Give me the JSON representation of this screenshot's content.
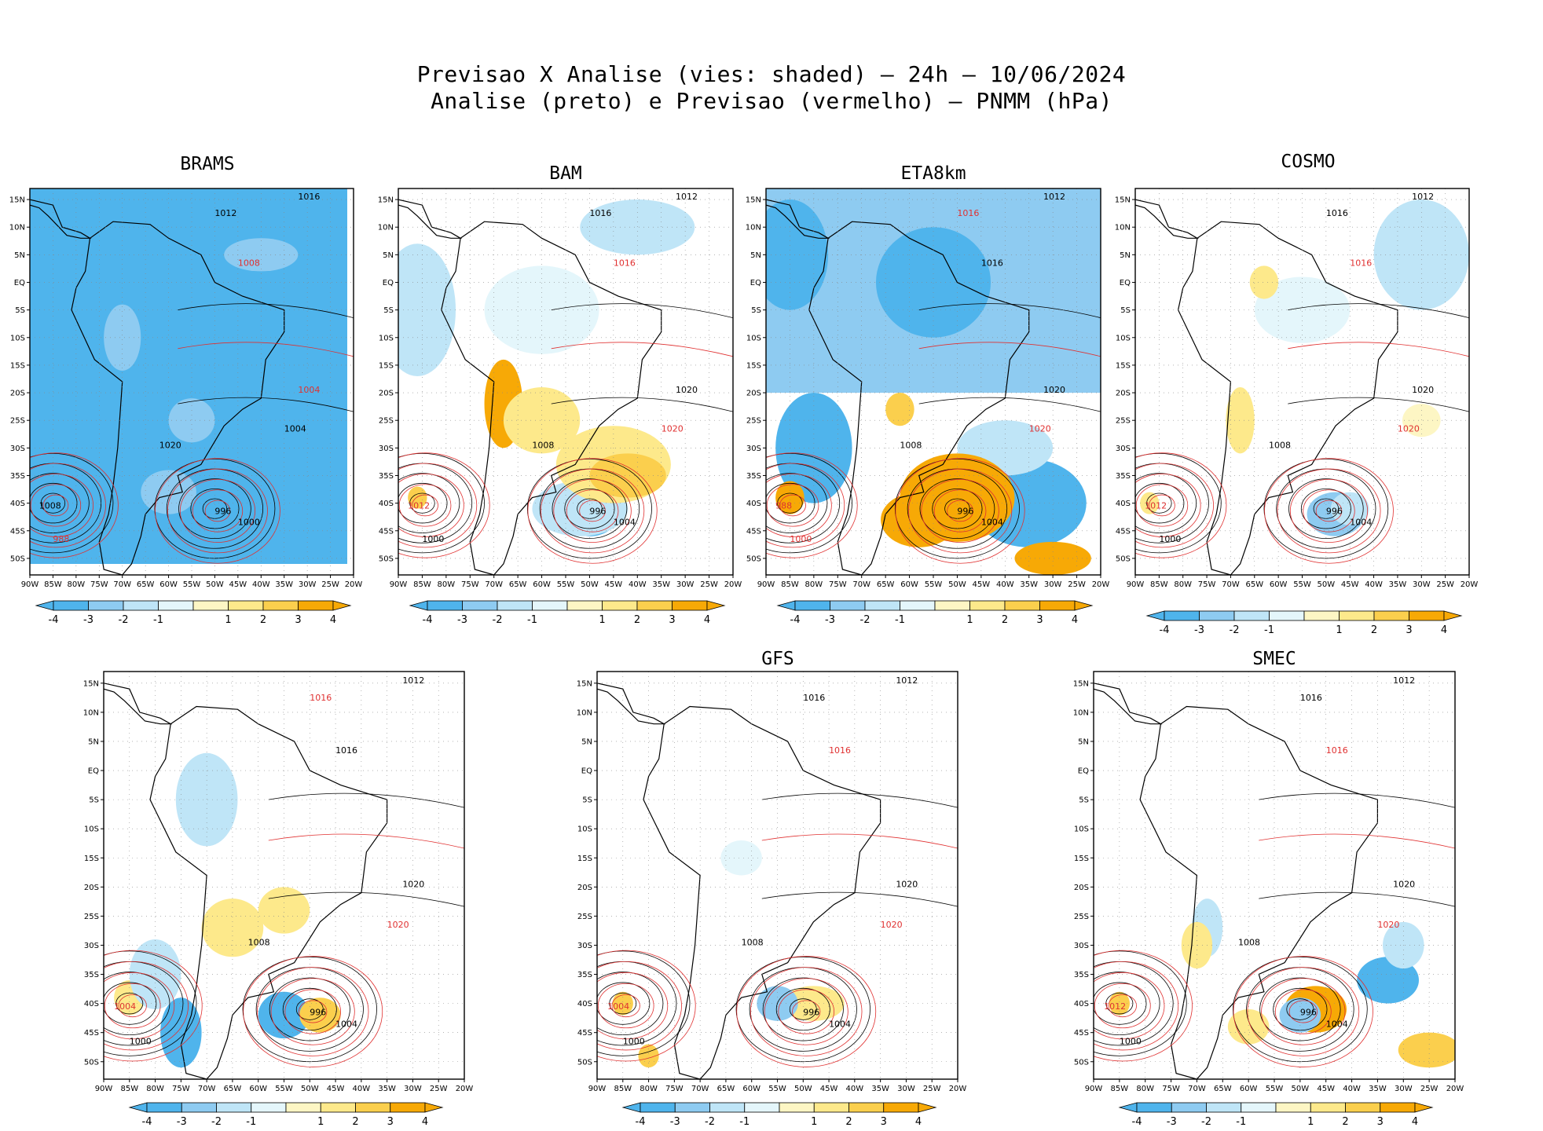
{
  "header": {
    "title_line1": "Previsao X Analise (vies: shaded) – 24h – 10/06/2024",
    "title_line2": "Analise (preto) e Previsao (vermelho) – PNMM (hPa)"
  },
  "colors": {
    "neg4": "#4fb4ec",
    "neg3": "#8ecbf1",
    "neg2": "#bfe5f7",
    "neg1": "#e4f6fb",
    "pos1": "#fdf6c4",
    "pos2": "#fde98b",
    "pos3": "#fbcf4d",
    "pos4": "#f7a906",
    "analysis": "#000000",
    "forecast": "#e03030"
  },
  "chart_data": [
    {
      "type": "heatmap",
      "model": "BRAMS",
      "title": "BRAMS",
      "bias": "strong-negative",
      "x_ticks": [
        "90W",
        "85W",
        "80W",
        "75W",
        "70W",
        "65W",
        "60W",
        "55W",
        "50W",
        "45W",
        "40W",
        "35W",
        "30W",
        "25W",
        "20W"
      ],
      "y_ticks": [
        "15N",
        "10N",
        "5N",
        "EQ",
        "5S",
        "10S",
        "15S",
        "20S",
        "25S",
        "30S",
        "35S",
        "40S",
        "45S",
        "50S"
      ],
      "isobar_labels": [
        {
          "text": "1012",
          "color": "analysis"
        },
        {
          "text": "1016",
          "color": "analysis"
        },
        {
          "text": "1008",
          "color": "forecast"
        },
        {
          "text": "1004",
          "color": "forecast"
        },
        {
          "text": "1020",
          "color": "analysis"
        },
        {
          "text": "1000",
          "color": "analysis"
        },
        {
          "text": "996",
          "color": "analysis"
        },
        {
          "text": "988",
          "color": "forecast"
        },
        {
          "text": "1004",
          "color": "analysis"
        },
        {
          "text": "1008",
          "color": "analysis"
        }
      ],
      "colorbar": {
        "labels": [
          "-4",
          "-3",
          "-2",
          "-1",
          "1",
          "2",
          "3",
          "4"
        ]
      }
    },
    {
      "type": "heatmap",
      "model": "BAM",
      "title": "BAM",
      "bias": "positive-south",
      "x_ticks": [
        "90W",
        "85W",
        "80W",
        "75W",
        "70W",
        "65W",
        "60W",
        "55W",
        "50W",
        "45W",
        "40W",
        "35W",
        "30W",
        "25W",
        "20W"
      ],
      "y_ticks": [
        "15N",
        "10N",
        "5N",
        "EQ",
        "5S",
        "10S",
        "15S",
        "20S",
        "25S",
        "30S",
        "35S",
        "40S",
        "45S",
        "50S"
      ],
      "isobar_labels": [
        {
          "text": "1016",
          "color": "analysis"
        },
        {
          "text": "1012",
          "color": "analysis"
        },
        {
          "text": "1016",
          "color": "forecast"
        },
        {
          "text": "1020",
          "color": "analysis"
        },
        {
          "text": "1008",
          "color": "analysis"
        },
        {
          "text": "1004",
          "color": "analysis"
        },
        {
          "text": "996",
          "color": "analysis"
        },
        {
          "text": "1000",
          "color": "analysis"
        },
        {
          "text": "1020",
          "color": "forecast"
        },
        {
          "text": "1012",
          "color": "forecast"
        }
      ],
      "colorbar": {
        "labels": [
          "-4",
          "-3",
          "-2",
          "-1",
          "1",
          "2",
          "3",
          "4"
        ]
      }
    },
    {
      "type": "heatmap",
      "model": "ETA8km",
      "title": "ETA8km",
      "bias": "mixed",
      "x_ticks": [
        "90W",
        "85W",
        "80W",
        "75W",
        "70W",
        "65W",
        "60W",
        "55W",
        "50W",
        "45W",
        "40W",
        "35W",
        "30W",
        "25W",
        "20W"
      ],
      "y_ticks": [
        "15N",
        "10N",
        "5N",
        "EQ",
        "5S",
        "10S",
        "15S",
        "20S",
        "25S",
        "30S",
        "35S",
        "40S",
        "45S",
        "50S"
      ],
      "isobar_labels": [
        {
          "text": "1016",
          "color": "forecast"
        },
        {
          "text": "1012",
          "color": "analysis"
        },
        {
          "text": "1016",
          "color": "analysis"
        },
        {
          "text": "1020",
          "color": "analysis"
        },
        {
          "text": "1008",
          "color": "analysis"
        },
        {
          "text": "1004",
          "color": "analysis"
        },
        {
          "text": "996",
          "color": "analysis"
        },
        {
          "text": "1000",
          "color": "forecast"
        },
        {
          "text": "1020",
          "color": "forecast"
        },
        {
          "text": "988",
          "color": "forecast"
        }
      ],
      "colorbar": {
        "labels": [
          "-4",
          "-3",
          "-2",
          "-1",
          "1",
          "2",
          "3",
          "4"
        ]
      }
    },
    {
      "type": "heatmap",
      "model": "COSMO",
      "title": "COSMO",
      "bias": "weak",
      "x_ticks": [
        "90W",
        "85W",
        "80W",
        "75W",
        "70W",
        "65W",
        "60W",
        "55W",
        "50W",
        "45W",
        "40W",
        "35W",
        "30W",
        "25W",
        "20W"
      ],
      "y_ticks": [
        "15N",
        "10N",
        "5N",
        "EQ",
        "5S",
        "10S",
        "15S",
        "20S",
        "25S",
        "30S",
        "35S",
        "40S",
        "45S",
        "50S"
      ],
      "isobar_labels": [
        {
          "text": "1016",
          "color": "analysis"
        },
        {
          "text": "1012",
          "color": "analysis"
        },
        {
          "text": "1016",
          "color": "forecast"
        },
        {
          "text": "1020",
          "color": "analysis"
        },
        {
          "text": "1008",
          "color": "analysis"
        },
        {
          "text": "1004",
          "color": "analysis"
        },
        {
          "text": "996",
          "color": "analysis"
        },
        {
          "text": "1000",
          "color": "analysis"
        },
        {
          "text": "1020",
          "color": "forecast"
        },
        {
          "text": "1012",
          "color": "forecast"
        }
      ],
      "colorbar": {
        "labels": [
          "-4",
          "-3",
          "-2",
          "-1",
          "1",
          "2",
          "3",
          "4"
        ]
      }
    },
    {
      "type": "heatmap",
      "model": "",
      "title": "",
      "bias": "mixed",
      "x_ticks": [
        "90W",
        "85W",
        "80W",
        "75W",
        "70W",
        "65W",
        "60W",
        "55W",
        "50W",
        "45W",
        "40W",
        "35W",
        "30W",
        "25W",
        "20W"
      ],
      "y_ticks": [
        "15N",
        "10N",
        "5N",
        "EQ",
        "5S",
        "10S",
        "15S",
        "20S",
        "25S",
        "30S",
        "35S",
        "40S",
        "45S",
        "50S"
      ],
      "isobar_labels": [
        {
          "text": "1016",
          "color": "forecast"
        },
        {
          "text": "1012",
          "color": "analysis"
        },
        {
          "text": "1016",
          "color": "analysis"
        },
        {
          "text": "1020",
          "color": "analysis"
        },
        {
          "text": "1008",
          "color": "analysis"
        },
        {
          "text": "1004",
          "color": "analysis"
        },
        {
          "text": "996",
          "color": "analysis"
        },
        {
          "text": "1000",
          "color": "analysis"
        },
        {
          "text": "1020",
          "color": "forecast"
        },
        {
          "text": "1004",
          "color": "forecast"
        }
      ],
      "colorbar": {
        "labels": [
          "-4",
          "-3",
          "-2",
          "-1",
          "1",
          "2",
          "3",
          "4"
        ]
      }
    },
    {
      "type": "heatmap",
      "model": "GFS",
      "title": "GFS",
      "bias": "weak",
      "x_ticks": [
        "90W",
        "85W",
        "80W",
        "75W",
        "70W",
        "65W",
        "60W",
        "55W",
        "50W",
        "45W",
        "40W",
        "35W",
        "30W",
        "25W",
        "20W"
      ],
      "y_ticks": [
        "15N",
        "10N",
        "5N",
        "EQ",
        "5S",
        "10S",
        "15S",
        "20S",
        "25S",
        "30S",
        "35S",
        "40S",
        "45S",
        "50S"
      ],
      "isobar_labels": [
        {
          "text": "1016",
          "color": "analysis"
        },
        {
          "text": "1012",
          "color": "analysis"
        },
        {
          "text": "1016",
          "color": "forecast"
        },
        {
          "text": "1020",
          "color": "analysis"
        },
        {
          "text": "1008",
          "color": "analysis"
        },
        {
          "text": "1004",
          "color": "analysis"
        },
        {
          "text": "996",
          "color": "analysis"
        },
        {
          "text": "1000",
          "color": "analysis"
        },
        {
          "text": "1020",
          "color": "forecast"
        },
        {
          "text": "1004",
          "color": "forecast"
        }
      ],
      "colorbar": {
        "labels": [
          "-4",
          "-3",
          "-2",
          "-1",
          "1",
          "2",
          "3",
          "4"
        ]
      }
    },
    {
      "type": "heatmap",
      "model": "SMEC",
      "title": "SMEC",
      "bias": "mixed",
      "x_ticks": [
        "90W",
        "85W",
        "80W",
        "75W",
        "70W",
        "65W",
        "60W",
        "55W",
        "50W",
        "45W",
        "40W",
        "35W",
        "30W",
        "25W",
        "20W"
      ],
      "y_ticks": [
        "15N",
        "10N",
        "5N",
        "EQ",
        "5S",
        "10S",
        "15S",
        "20S",
        "25S",
        "30S",
        "35S",
        "40S",
        "45S",
        "50S"
      ],
      "isobar_labels": [
        {
          "text": "1016",
          "color": "analysis"
        },
        {
          "text": "1012",
          "color": "analysis"
        },
        {
          "text": "1016",
          "color": "forecast"
        },
        {
          "text": "1020",
          "color": "analysis"
        },
        {
          "text": "1008",
          "color": "analysis"
        },
        {
          "text": "1004",
          "color": "analysis"
        },
        {
          "text": "996",
          "color": "analysis"
        },
        {
          "text": "1000",
          "color": "analysis"
        },
        {
          "text": "1020",
          "color": "forecast"
        },
        {
          "text": "1012",
          "color": "forecast"
        }
      ],
      "colorbar": {
        "labels": [
          "-4",
          "-3",
          "-2",
          "-1",
          "1",
          "2",
          "3",
          "4"
        ]
      }
    }
  ]
}
